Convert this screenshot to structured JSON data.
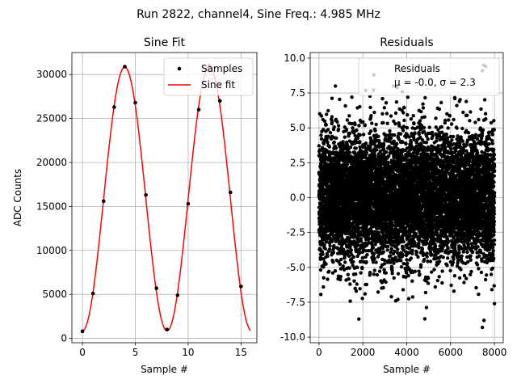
{
  "figure": {
    "suptitle": "Run 2822, channel4, Sine Freq.: 4.985 MHz"
  },
  "chart_data": [
    {
      "type": "line",
      "title": "Sine Fit",
      "xlabel": "Sample #",
      "ylabel": "ADC Counts",
      "xlim": [
        -1,
        16.5
      ],
      "ylim": [
        -500,
        32500
      ],
      "xticks": [
        0,
        5,
        10,
        15
      ],
      "yticks": [
        0,
        5000,
        10000,
        15000,
        20000,
        25000,
        30000
      ],
      "grid": true,
      "legend": {
        "placement": "top-right",
        "entries": [
          "Samples",
          "Sine fit"
        ]
      },
      "series": [
        {
          "name": "Samples",
          "kind": "scatter",
          "color": "#000000",
          "x": [
            0,
            1,
            2,
            3,
            4,
            5,
            6,
            7,
            8,
            9,
            10,
            11,
            12,
            13,
            14,
            15
          ],
          "y": [
            800,
            5100,
            15600,
            26300,
            30900,
            26800,
            16300,
            5700,
            1000,
            4900,
            15300,
            26000,
            31000,
            27000,
            16600,
            5900
          ]
        },
        {
          "name": "Sine fit",
          "kind": "line",
          "color": "#ff0000",
          "model": {
            "amplitude": 15000,
            "offset": 15850,
            "period_samples": 8.0,
            "phase_peak_at": 4.0
          },
          "x_range": [
            0,
            15.9
          ]
        }
      ]
    },
    {
      "type": "scatter",
      "title": "Residuals",
      "xlabel": "Sample #",
      "ylabel": "",
      "xlim": [
        -400,
        8400
      ],
      "ylim": [
        -10.4,
        10.4
      ],
      "xticks": [
        0,
        2000,
        4000,
        6000,
        8000
      ],
      "yticks": [
        -10.0,
        -7.5,
        -5.0,
        -2.5,
        0.0,
        2.5,
        5.0,
        7.5,
        10.0
      ],
      "grid": true,
      "legend": {
        "placement": "top-right",
        "entries": [
          "Residuals",
          "μ = -0.0, σ = 2.3"
        ]
      },
      "series": [
        {
          "name": "Residuals",
          "color": "#000000",
          "n_points": 8000,
          "mean": 0.0,
          "sigma": 2.3,
          "highlight_points": [
            [
              1820,
              -8.7
            ],
            [
              2500,
              8.8
            ],
            [
              750,
              8.0
            ],
            [
              7450,
              -9.3
            ],
            [
              7500,
              9.5
            ],
            [
              7520,
              -8.8
            ],
            [
              7600,
              9.4
            ],
            [
              3400,
              8.0
            ],
            [
              3600,
              -7.3
            ],
            [
              8000,
              -7.6
            ],
            [
              6150,
              -6.7
            ],
            [
              7450,
              9.1
            ],
            [
              200,
              -6.4
            ],
            [
              5300,
              -6.4
            ],
            [
              1700,
              -6.7
            ],
            [
              2100,
              -6.9
            ],
            [
              3300,
              -7.1
            ],
            [
              4050,
              7.2
            ],
            [
              1500,
              7.2
            ],
            [
              6400,
              6.9
            ],
            [
              3500,
              -7.4
            ],
            [
              3800,
              7.6
            ]
          ]
        }
      ]
    }
  ]
}
